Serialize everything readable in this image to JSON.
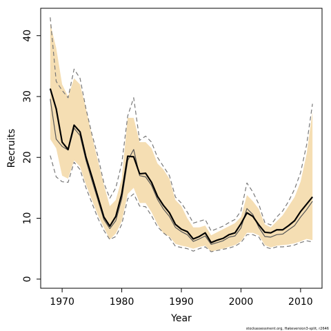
{
  "chart_data": {
    "type": "line",
    "xlabel": "Year",
    "ylabel": "Recruits",
    "xlim": [
      1966.4,
      2013.6
    ],
    "ylim": [
      -1.5,
      44.5
    ],
    "x_ticks": [
      1970,
      1980,
      1990,
      2000,
      2010
    ],
    "x_tick_labels": [
      "1970",
      "1980",
      "1990",
      "2000",
      "2010"
    ],
    "y_ticks": [
      0,
      10,
      20,
      30,
      40
    ],
    "y_tick_labels": [
      "0",
      "10",
      "20",
      "30",
      "40"
    ],
    "grid": false,
    "legend": "none",
    "years": [
      1968,
      1969,
      1970,
      1971,
      1972,
      1973,
      1974,
      1975,
      1976,
      1977,
      1978,
      1979,
      1980,
      1981,
      1982,
      1983,
      1984,
      1985,
      1986,
      1987,
      1988,
      1989,
      1990,
      1991,
      1992,
      1993,
      1994,
      1995,
      1996,
      1997,
      1998,
      1999,
      2000,
      2001,
      2002,
      2003,
      2004,
      2005,
      2006,
      2007,
      2008,
      2009,
      2010,
      2011,
      2012
    ],
    "band": {
      "upper": [
        42.0,
        38.0,
        32.0,
        30.0,
        33.0,
        32.0,
        28.0,
        23.5,
        19.5,
        15.5,
        12.0,
        13.0,
        16.5,
        26.5,
        26.5,
        22.5,
        22.5,
        21.5,
        19.0,
        18.0,
        16.5,
        13.0,
        12.0,
        10.0,
        8.5,
        8.5,
        8.8,
        7.2,
        7.7,
        8.2,
        8.7,
        9.2,
        10.2,
        13.8,
        12.8,
        11.5,
        9.0,
        8.5,
        9.5,
        10.5,
        12.0,
        13.5,
        16.0,
        20.5,
        27.5
      ],
      "lower": [
        23.0,
        21.5,
        17.0,
        16.5,
        19.5,
        18.5,
        15.5,
        13.0,
        10.5,
        8.5,
        6.5,
        7.5,
        9.5,
        14.0,
        15.0,
        12.5,
        12.5,
        11.0,
        9.0,
        7.5,
        7.0,
        5.8,
        5.5,
        5.3,
        5.0,
        5.3,
        5.5,
        4.5,
        4.8,
        5.0,
        5.3,
        5.6,
        6.2,
        7.6,
        7.6,
        7.2,
        5.6,
        5.2,
        5.5,
        5.6,
        5.7,
        5.9,
        6.2,
        6.6,
        6.4
      ]
    },
    "series": [
      {
        "role": "mle",
        "color": "#000000",
        "values": [
          31.3,
          28.0,
          22.5,
          21.3,
          25.3,
          24.2,
          20.0,
          16.8,
          13.5,
          10.2,
          8.7,
          10.3,
          14.0,
          20.2,
          20.1,
          17.3,
          17.4,
          15.9,
          13.6,
          12.1,
          10.9,
          9.0,
          8.2,
          7.8,
          6.6,
          7.0,
          7.6,
          6.0,
          6.4,
          6.7,
          7.3,
          7.6,
          9.1,
          10.9,
          10.3,
          8.9,
          7.7,
          7.6,
          8.1,
          8.1,
          8.8,
          9.6,
          11.1,
          12.3,
          13.5
        ]
      },
      {
        "role": "median",
        "color": "#555555",
        "values": [
          29.6,
          23.0,
          21.8,
          21.2,
          24.8,
          23.6,
          19.5,
          16.2,
          13.0,
          9.8,
          8.3,
          9.6,
          13.2,
          19.5,
          21.3,
          17.0,
          16.8,
          15.4,
          13.1,
          11.5,
          10.3,
          8.5,
          7.8,
          7.3,
          6.2,
          6.6,
          7.1,
          5.7,
          6.0,
          6.3,
          6.9,
          7.1,
          8.4,
          11.6,
          10.6,
          8.5,
          7.0,
          6.9,
          7.3,
          7.4,
          8.1,
          8.8,
          10.2,
          11.4,
          12.8
        ]
      },
      {
        "role": "interval-upper",
        "color": "#777777",
        "dashed": true,
        "values": [
          43.0,
          32.5,
          31.0,
          29.8,
          34.5,
          33.0,
          28.0,
          23.8,
          20.2,
          15.8,
          13.3,
          15.0,
          19.0,
          26.8,
          29.8,
          22.8,
          23.5,
          22.5,
          20.0,
          18.5,
          17.0,
          13.5,
          12.5,
          11.0,
          9.2,
          9.5,
          9.8,
          7.9,
          8.3,
          8.7,
          9.3,
          9.8,
          11.2,
          15.8,
          14.3,
          12.3,
          9.3,
          8.9,
          10.2,
          11.2,
          12.8,
          14.8,
          17.5,
          22.0,
          28.8
        ]
      },
      {
        "role": "interval-lower",
        "color": "#777777",
        "dashed": true,
        "values": [
          20.3,
          16.8,
          16.0,
          15.9,
          19.2,
          18.0,
          15.0,
          12.5,
          10.0,
          8.0,
          6.5,
          7.0,
          9.0,
          13.2,
          14.0,
          12.0,
          11.9,
          10.4,
          8.6,
          7.6,
          6.8,
          5.4,
          5.2,
          5.0,
          4.6,
          5.0,
          5.3,
          4.5,
          4.7,
          4.9,
          5.1,
          5.4,
          6.0,
          7.3,
          7.3,
          6.9,
          5.3,
          5.0,
          5.3,
          5.3,
          5.4,
          5.6,
          6.0,
          6.3,
          6.1
        ]
      }
    ],
    "colors": {
      "band": "#F5DEB3",
      "frame": "#000000"
    },
    "footnote": "stockassessment.org, Hakeversion3-split, r2646"
  }
}
